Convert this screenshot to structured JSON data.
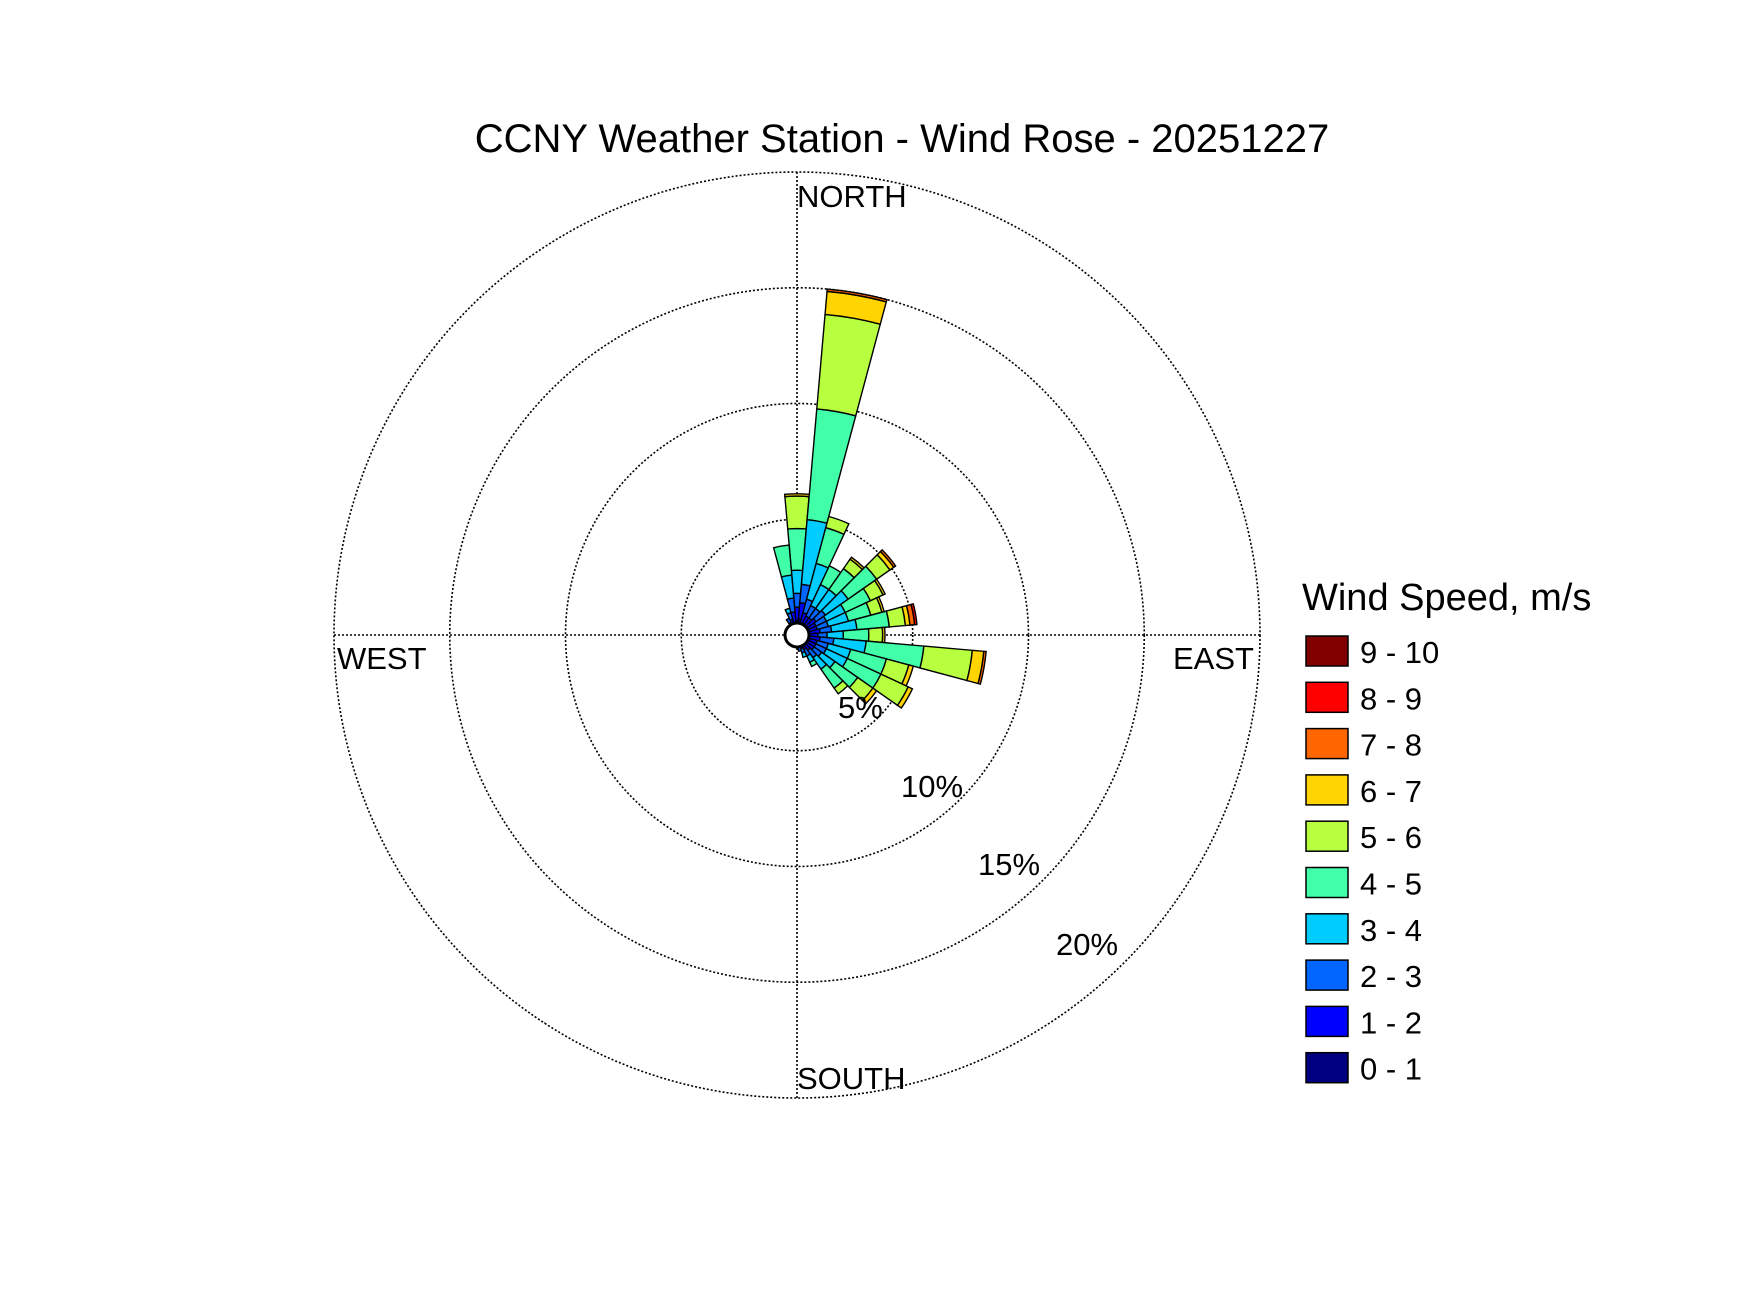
{
  "chart_data": {
    "type": "windrose",
    "title": "CCNY Weather Station - Wind Rose - 20251227",
    "direction_labels": {
      "north": "NORTH",
      "east": "EAST",
      "south": "SOUTH",
      "west": "WEST"
    },
    "radial_ticks": [
      "5%",
      "10%",
      "15%",
      "20%"
    ],
    "radial_values": [
      5,
      10,
      15,
      20
    ],
    "rmax": 20,
    "legend": {
      "title": "Wind Speed, m/s",
      "placement": "right",
      "bins": [
        {
          "label": "0 - 1",
          "color": "#000080"
        },
        {
          "label": "1 - 2",
          "color": "#0000FF"
        },
        {
          "label": "2 - 3",
          "color": "#0066FF"
        },
        {
          "label": "3 - 4",
          "color": "#00CCFF"
        },
        {
          "label": "4 - 5",
          "color": "#40FFA8"
        },
        {
          "label": "5 - 6",
          "color": "#B8FF40"
        },
        {
          "label": "6 - 7",
          "color": "#FFD400"
        },
        {
          "label": "7 - 8",
          "color": "#FF6600"
        },
        {
          "label": "8 - 9",
          "color": "#FF0000"
        },
        {
          "label": "9 - 10",
          "color": "#800000"
        }
      ]
    },
    "sector_width_deg": 10,
    "sectors": [
      {
        "dir": 0,
        "cumulative": [
          0.6,
          1.2,
          1.8,
          2.8,
          4.6,
          6.0,
          6.1
        ]
      },
      {
        "dir": 10,
        "cumulative": [
          0.7,
          1.4,
          2.2,
          5.0,
          9.8,
          13.9,
          14.9,
          15.0
        ]
      },
      {
        "dir": 20,
        "cumulative": [
          0.5,
          1.0,
          1.6,
          3.2,
          4.8,
          5.3
        ]
      },
      {
        "dir": 30,
        "cumulative": [
          0.5,
          0.9,
          1.4,
          2.4,
          3.3
        ]
      },
      {
        "dir": 40,
        "cumulative": [
          0.5,
          0.9,
          1.4,
          2.4,
          3.5,
          4.0,
          4.1
        ]
      },
      {
        "dir": 50,
        "cumulative": [
          0.5,
          1.0,
          1.5,
          2.7,
          4.2,
          4.9,
          5.1,
          5.2
        ]
      },
      {
        "dir": 60,
        "cumulative": [
          0.5,
          0.9,
          1.4,
          2.3,
          3.5,
          4.1,
          4.2
        ]
      },
      {
        "dir": 70,
        "cumulative": [
          0.5,
          0.9,
          1.4,
          2.3,
          3.3,
          3.8,
          3.9
        ]
      },
      {
        "dir": 80,
        "cumulative": [
          0.5,
          1.0,
          1.5,
          2.6,
          4.0,
          4.7,
          4.9,
          5.1,
          5.2
        ]
      },
      {
        "dir": 90,
        "cumulative": [
          0.5,
          0.9,
          1.3,
          2.0,
          3.1,
          3.7,
          3.8
        ]
      },
      {
        "dir": 100,
        "cumulative": [
          0.5,
          1.0,
          1.6,
          3.0,
          5.5,
          7.6,
          8.1,
          8.2
        ]
      },
      {
        "dir": 110,
        "cumulative": [
          0.5,
          0.9,
          1.4,
          2.4,
          4.0,
          5.0,
          5.2
        ]
      },
      {
        "dir": 120,
        "cumulative": [
          0.5,
          0.9,
          1.4,
          2.4,
          4.0,
          5.3,
          5.5
        ]
      },
      {
        "dir": 130,
        "cumulative": [
          0.5,
          0.9,
          1.3,
          2.0,
          3.2,
          4.0,
          4.2
        ]
      },
      {
        "dir": 140,
        "cumulative": [
          0.4,
          0.8,
          1.2,
          1.8,
          2.8,
          3.1
        ]
      },
      {
        "dir": 150,
        "cumulative": [
          0.4,
          0.7,
          1.0,
          1.3,
          1.5
        ]
      },
      {
        "dir": 160,
        "cumulative": [
          0.4,
          0.6,
          0.8,
          1.0
        ]
      },
      {
        "dir": 170,
        "cumulative": [
          0.3,
          0.5,
          0.7
        ]
      },
      {
        "dir": 180,
        "cumulative": [
          0.3,
          0.5
        ]
      },
      {
        "dir": 190,
        "cumulative": [
          0.3,
          0.5
        ]
      },
      {
        "dir": 200,
        "cumulative": [
          0.3,
          0.4
        ]
      },
      {
        "dir": 210,
        "cumulative": [
          0.3,
          0.4
        ]
      },
      {
        "dir": 220,
        "cumulative": [
          0.3,
          0.4
        ]
      },
      {
        "dir": 230,
        "cumulative": [
          0.3,
          0.4
        ]
      },
      {
        "dir": 240,
        "cumulative": [
          0.3,
          0.4
        ]
      },
      {
        "dir": 250,
        "cumulative": [
          0.3,
          0.5
        ]
      },
      {
        "dir": 260,
        "cumulative": [
          0.3,
          0.5
        ]
      },
      {
        "dir": 270,
        "cumulative": [
          0.3,
          0.5
        ]
      },
      {
        "dir": 280,
        "cumulative": [
          0.3,
          0.5
        ]
      },
      {
        "dir": 290,
        "cumulative": [
          0.3,
          0.5
        ]
      },
      {
        "dir": 300,
        "cumulative": [
          0.3,
          0.5
        ]
      },
      {
        "dir": 310,
        "cumulative": [
          0.3,
          0.5
        ]
      },
      {
        "dir": 320,
        "cumulative": [
          0.3,
          0.5
        ]
      },
      {
        "dir": 330,
        "cumulative": [
          0.3,
          0.6,
          0.8
        ]
      },
      {
        "dir": 340,
        "cumulative": [
          0.4,
          0.7,
          1.0,
          1.2
        ]
      },
      {
        "dir": 350,
        "cumulative": [
          0.5,
          1.0,
          1.6,
          2.6,
          3.9
        ]
      }
    ]
  }
}
